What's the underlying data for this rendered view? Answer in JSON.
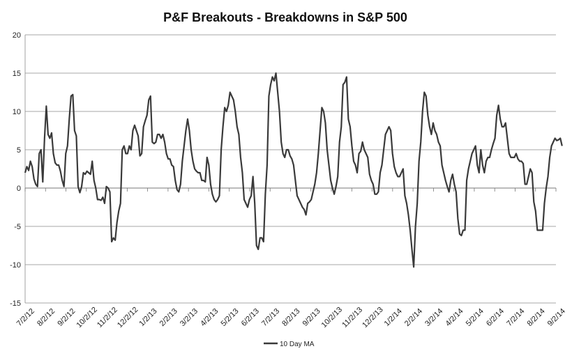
{
  "chart_data": {
    "type": "line",
    "title": "P&F Breakouts - Breakdowns in S&P 500",
    "xlabel": "",
    "ylabel": "",
    "ylim": [
      -15,
      20
    ],
    "y_ticks": [
      "20",
      "15",
      "10",
      "5",
      "0",
      "-5",
      "-10",
      "-15"
    ],
    "x_tick_labels": [
      "7/2/12",
      "8/2/12",
      "9/2/12",
      "10/2/12",
      "11/2/12",
      "12/2/12",
      "1/2/13",
      "2/2/13",
      "3/2/13",
      "4/2/13",
      "5/2/13",
      "6/2/13",
      "7/2/13",
      "8/2/13",
      "9/2/13",
      "10/2/13",
      "11/2/13",
      "12/2/13",
      "1/2/14",
      "2/2/14",
      "3/2/14",
      "4/2/14",
      "5/2/14",
      "6/2/14",
      "7/2/14",
      "8/2/14",
      "9/2/14"
    ],
    "grid": true,
    "legend_position": "bottom",
    "line_color": "#3a3a3a",
    "series": [
      {
        "name": "10 Day MA",
        "x_start": 0,
        "x_end": 26.3,
        "values": [
          2.0,
          2.8,
          2.3,
          3.5,
          2.8,
          1.2,
          0.5,
          0.2,
          4.5,
          5.0,
          0.8,
          6.5,
          10.7,
          7.0,
          6.5,
          7.2,
          4.5,
          3.3,
          3.0,
          3.0,
          2.2,
          1.0,
          0.2,
          4.5,
          5.5,
          9.0,
          12.0,
          12.2,
          7.5,
          6.8,
          0.2,
          -0.6,
          0.2,
          2.0,
          1.8,
          2.2,
          2.0,
          1.8,
          3.5,
          1.0,
          0.0,
          -1.5,
          -1.5,
          -1.6,
          -1.2,
          -2.0,
          0.2,
          0.0,
          -0.5,
          -7.0,
          -6.5,
          -6.8,
          -4.5,
          -3.0,
          -2.0,
          5.0,
          5.5,
          4.5,
          4.5,
          5.5,
          5.0,
          7.5,
          8.2,
          7.5,
          6.8,
          4.2,
          4.5,
          8.0,
          8.8,
          9.5,
          11.5,
          12.0,
          6.0,
          5.8,
          6.0,
          7.0,
          7.0,
          6.5,
          7.0,
          6.0,
          4.5,
          3.8,
          3.8,
          3.0,
          2.8,
          1.0,
          -0.2,
          -0.5,
          0.5,
          3.5,
          5.5,
          7.5,
          9.0,
          7.5,
          5.0,
          3.5,
          2.5,
          2.2,
          2.0,
          2.0,
          1.0,
          1.0,
          0.8,
          4.0,
          3.0,
          0.5,
          -0.8,
          -1.5,
          -1.8,
          -1.5,
          -1.0,
          5.0,
          8.0,
          10.5,
          10.0,
          10.8,
          12.5,
          12.0,
          11.5,
          10.0,
          8.0,
          7.0,
          4.0,
          2.0,
          -1.5,
          -2.0,
          -2.5,
          -1.5,
          -1.0,
          1.5,
          -2.0,
          -7.5,
          -8.0,
          -6.5,
          -6.5,
          -7.0,
          -0.8,
          3.0,
          12.0,
          13.5,
          14.5,
          14.0,
          15.0,
          12.5,
          10.0,
          6.0,
          4.5,
          4.0,
          5.0,
          5.0,
          4.2,
          3.8,
          3.0,
          1.0,
          -1.0,
          -1.5,
          -2.0,
          -2.5,
          -2.8,
          -3.5,
          -2.0,
          -1.8,
          -1.5,
          -0.5,
          0.5,
          2.0,
          4.5,
          7.5,
          10.5,
          10.0,
          8.5,
          5.0,
          3.0,
          1.0,
          0.0,
          -0.8,
          0.2,
          1.5,
          6.0,
          8.0,
          13.5,
          13.8,
          14.5,
          9.0,
          8.0,
          5.5,
          3.5,
          3.0,
          2.0,
          4.5,
          4.8,
          6.0,
          5.0,
          4.5,
          4.0,
          1.8,
          1.0,
          0.5,
          -0.8,
          -0.8,
          -0.5,
          2.0,
          3.0,
          5.0,
          7.0,
          7.5,
          8.0,
          7.5,
          4.5,
          2.8,
          2.0,
          1.5,
          1.5,
          2.0,
          2.5,
          -1.0,
          -2.0,
          -3.5,
          -5.5,
          -8.0,
          -10.3,
          -5.0,
          -2.0,
          3.5,
          6.0,
          10.0,
          12.5,
          12.0,
          9.5,
          8.0,
          7.0,
          8.5,
          7.5,
          7.0,
          6.0,
          5.5,
          3.0,
          2.0,
          1.0,
          0.2,
          -0.5,
          1.0,
          1.8,
          0.5,
          -0.5,
          -4.0,
          -6.0,
          -6.2,
          -5.5,
          -5.5,
          1.0,
          2.5,
          3.5,
          4.5,
          5.0,
          5.5,
          3.0,
          2.0,
          5.0,
          3.0,
          2.0,
          3.5,
          4.0,
          4.0,
          5.0,
          5.8,
          6.5,
          9.5,
          10.8,
          9.0,
          8.0,
          8.0,
          8.5,
          6.5,
          4.5,
          4.0,
          4.0,
          4.0,
          4.5,
          3.8,
          3.5,
          3.5,
          3.2,
          0.5,
          0.5,
          1.5,
          2.5,
          2.0,
          -1.8,
          -3.0,
          -5.5,
          -5.5,
          -5.5,
          -5.5,
          -2.0,
          0.0,
          1.5,
          4.0,
          5.5,
          6.0,
          6.5,
          6.2,
          6.3,
          6.5,
          5.5
        ]
      }
    ]
  }
}
